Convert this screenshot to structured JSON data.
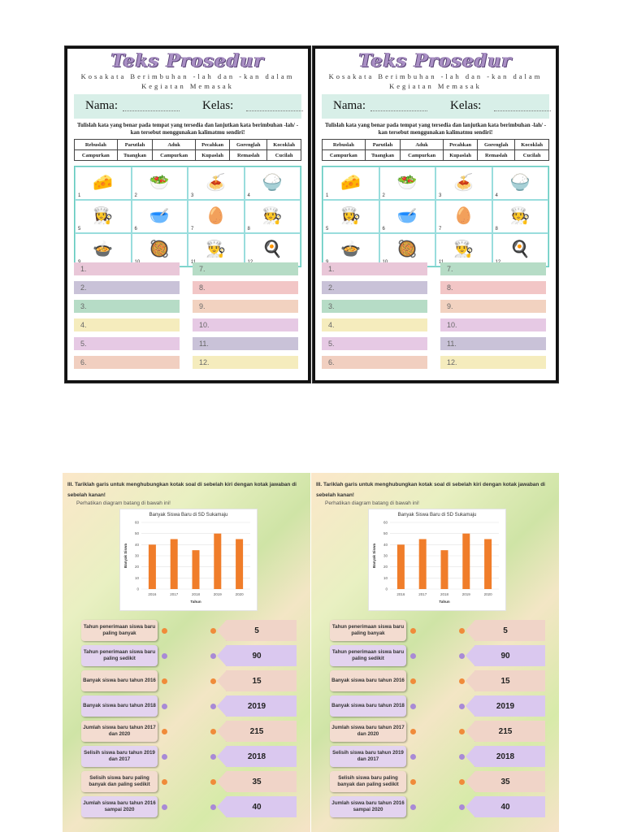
{
  "worksheet1": {
    "title": "Teks Prosedur",
    "subtitle_line1": "Kosakata Berimbuhan -lah dan -kan dalam",
    "subtitle_line2": "Kegiatan Memasak",
    "nama_label": "Nama:",
    "kelas_label": "Kelas:",
    "instruction": "Tulislah kata yang benar pada tempat yang tersedia dan lanjutkan kata berimbuhan -lah/ -kan tersebut menggunakan kalimatmu sendiri!",
    "words_row1": [
      "Rebuslah",
      "Parutlah",
      "Aduk",
      "Pecahkan",
      "Gorenglah",
      "Kocoklah"
    ],
    "words_row2": [
      "Campurkan",
      "Tuangkan",
      "Campurkan",
      "Kupaslah",
      "Remaslah",
      "Cucilah"
    ],
    "pictures": [
      {
        "n": "1",
        "icon": "🧀"
      },
      {
        "n": "2",
        "icon": "🥗"
      },
      {
        "n": "3",
        "icon": "🍝"
      },
      {
        "n": "4",
        "icon": "🍚"
      },
      {
        "n": "5",
        "icon": "👩‍🍳"
      },
      {
        "n": "6",
        "icon": "🥣"
      },
      {
        "n": "7",
        "icon": "🥚"
      },
      {
        "n": "8",
        "icon": "🧑‍🍳"
      },
      {
        "n": "9",
        "icon": "🍲"
      },
      {
        "n": "10",
        "icon": "🥘"
      },
      {
        "n": "11",
        "icon": "👨‍🍳"
      },
      {
        "n": "12",
        "icon": "🍳"
      }
    ],
    "answer_left": [
      "1.",
      "2.",
      "3.",
      "4.",
      "5.",
      "6."
    ],
    "answer_right": [
      "7.",
      "8.",
      "9.",
      "10.",
      "11.",
      "12."
    ],
    "colors_left": [
      "#e9c7d8",
      "#c9c2d8",
      "#b6dcc6",
      "#f5ecbd",
      "#e6c9e4",
      "#f1cfc0"
    ],
    "colors_right": [
      "#b6dcc6",
      "#f2c6c6",
      "#f2d2c0",
      "#e6c9e4",
      "#c9c2d8",
      "#f5ecbd"
    ]
  },
  "worksheet2": {
    "question_line1": "III.  Tariklah garis untuk menghubungkan kotak soal di sebelah kiri dengan kotak jawaban di",
    "question_line2": "sebelah kanan!",
    "instruction": "Perhatikan diagram batang di bawah ini!",
    "left_items": [
      "Tahun penerimaan siswa baru paling banyak",
      "Tahun penerimaan siswa baru paling sedikit",
      "Banyak siswa baru tahun 2016",
      "Banyak siswa baru tahun 2018",
      "Jumlah siswa baru tahun 2017 dan 2020",
      "Selisih siswa baru tahun 2019 dan 2017",
      "Selisih siswa baru paling banyak dan paling sedikit",
      "Jumlah siswa baru tahun 2016 sampai 2020"
    ],
    "right_items": [
      "5",
      "90",
      "15",
      "2019",
      "215",
      "2018",
      "35",
      "40"
    ],
    "left_colors": [
      "#f3dcd0",
      "#e3d3ef",
      "#f3dcd0",
      "#e3d3ef",
      "#f3dcd0",
      "#e3d3ef",
      "#f3dcd0",
      "#e3d3ef"
    ],
    "right_colors": [
      "#f0d4c8",
      "#dac8ef",
      "#f0d4c8",
      "#dac8ef",
      "#f0d4c8",
      "#dac8ef",
      "#f0d4c8",
      "#dac8ef"
    ],
    "dot_colors": [
      "#f08b3a",
      "#a98ad6",
      "#f08b3a",
      "#a98ad6",
      "#f08b3a",
      "#a98ad6",
      "#f08b3a",
      "#a98ad6"
    ]
  },
  "chart_data": {
    "type": "bar",
    "title": "Banyak Siswa Baru di SD Sukamaju",
    "xlabel": "Tahun",
    "ylabel": "Banyak Siswa",
    "categories": [
      "2016",
      "2017",
      "2018",
      "2019",
      "2020"
    ],
    "values": [
      40,
      45,
      35,
      50,
      45
    ],
    "ylim": [
      0,
      60
    ],
    "yticks": [
      "0",
      "10",
      "20",
      "30",
      "40",
      "50",
      "60"
    ],
    "bar_color": "#f07d2a",
    "grid": true
  }
}
